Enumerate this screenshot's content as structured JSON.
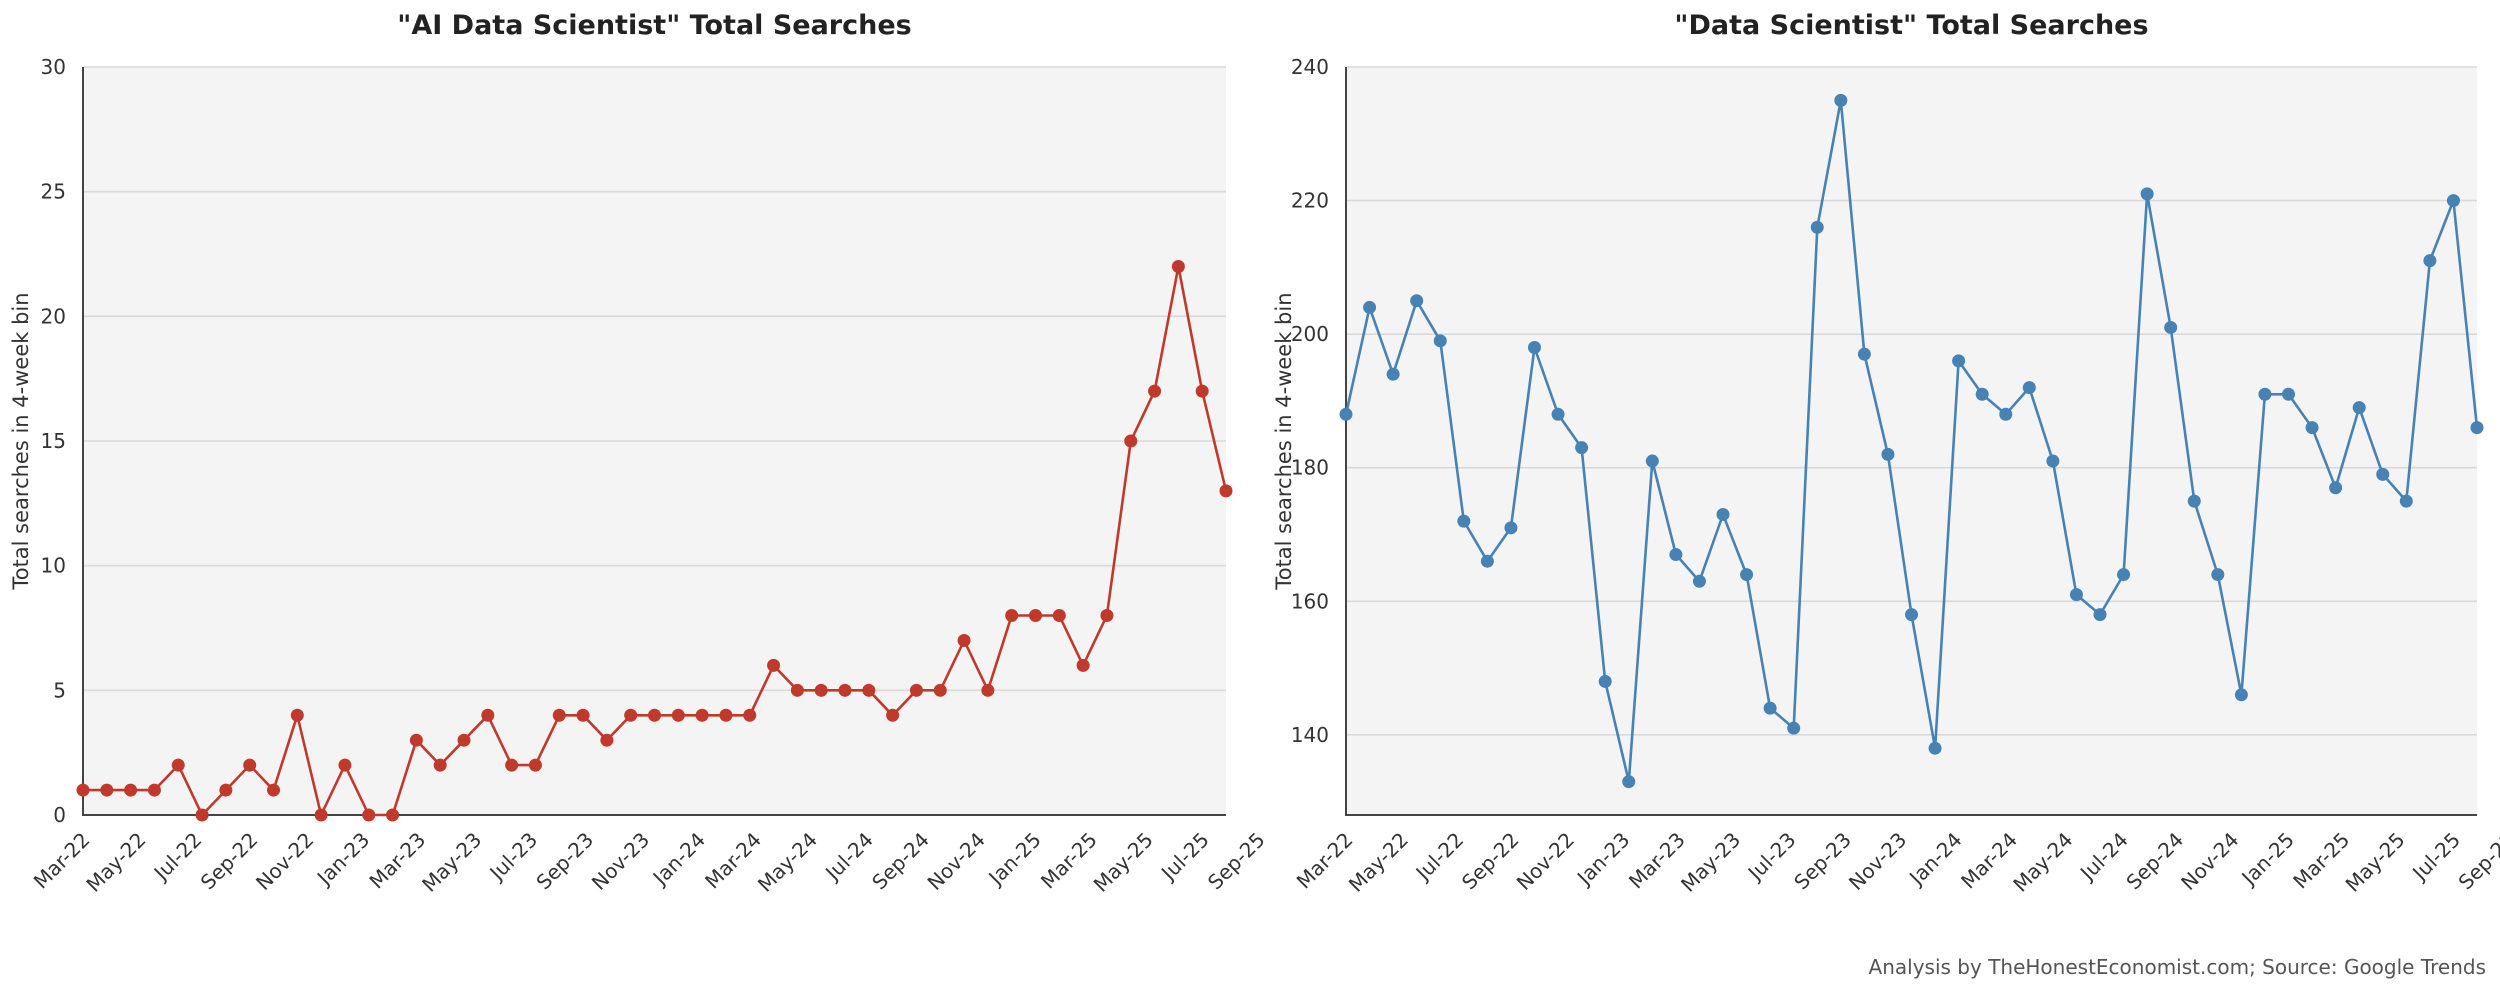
{
  "credit": "Analysis by TheHonestEconomist.com; Source: Google Trends",
  "chart_data": [
    {
      "type": "line",
      "title": "\"AI Data Scientist\" Total Searches",
      "xlabel": "",
      "ylabel": "Total searches in 4-week bin",
      "ylim": [
        0,
        30
      ],
      "yticks": [
        0,
        5,
        10,
        15,
        20,
        25,
        30
      ],
      "x_tick_labels": [
        "Mar-22",
        "May-22",
        "Jul-22",
        "Sep-22",
        "Nov-22",
        "Jan-23",
        "Mar-23",
        "May-23",
        "Jul-23",
        "Sep-23",
        "Nov-23",
        "Jan-24",
        "Mar-24",
        "May-24",
        "Jul-24",
        "Sep-24",
        "Nov-24",
        "Jan-25",
        "Mar-25",
        "May-25",
        "Jul-25",
        "Sep-25"
      ],
      "grid": "horizontal",
      "color": "#c0392b",
      "series": [
        {
          "values": [
            1,
            1,
            1,
            1,
            2,
            0,
            1,
            2,
            1,
            4,
            0,
            2,
            0,
            0,
            3,
            2,
            3,
            4,
            2,
            2,
            4,
            4,
            3,
            4,
            4,
            4,
            4,
            4,
            4,
            6,
            5,
            5,
            5,
            5,
            4,
            5,
            5,
            7,
            5,
            8,
            8,
            8,
            6,
            8,
            15,
            17,
            22,
            17,
            13
          ]
        }
      ]
    },
    {
      "type": "line",
      "title": "\"Data Scientist\" Total Searches",
      "xlabel": "",
      "ylabel": "Total searches in 4-week bin",
      "ylim": [
        128,
        240
      ],
      "yticks": [
        140,
        160,
        180,
        200,
        220,
        240
      ],
      "x_tick_labels": [
        "Mar-22",
        "May-22",
        "Jul-22",
        "Sep-22",
        "Nov-22",
        "Jan-23",
        "Mar-23",
        "May-23",
        "Jul-23",
        "Sep-23",
        "Nov-23",
        "Jan-24",
        "Mar-24",
        "May-24",
        "Jul-24",
        "Sep-24",
        "Nov-24",
        "Jan-25",
        "Mar-25",
        "May-25",
        "Jul-25",
        "Sep-25"
      ],
      "grid": "horizontal",
      "color": "#4682b4",
      "series": [
        {
          "values": [
            188,
            204,
            194,
            205,
            199,
            172,
            166,
            171,
            198,
            188,
            183,
            148,
            133,
            181,
            167,
            163,
            173,
            164,
            144,
            141,
            216,
            235,
            197,
            182,
            158,
            138,
            196,
            191,
            188,
            192,
            181,
            161,
            158,
            164,
            221,
            201,
            175,
            164,
            146,
            191,
            191,
            186,
            177,
            189,
            179,
            175,
            211,
            220,
            186
          ]
        }
      ]
    }
  ]
}
